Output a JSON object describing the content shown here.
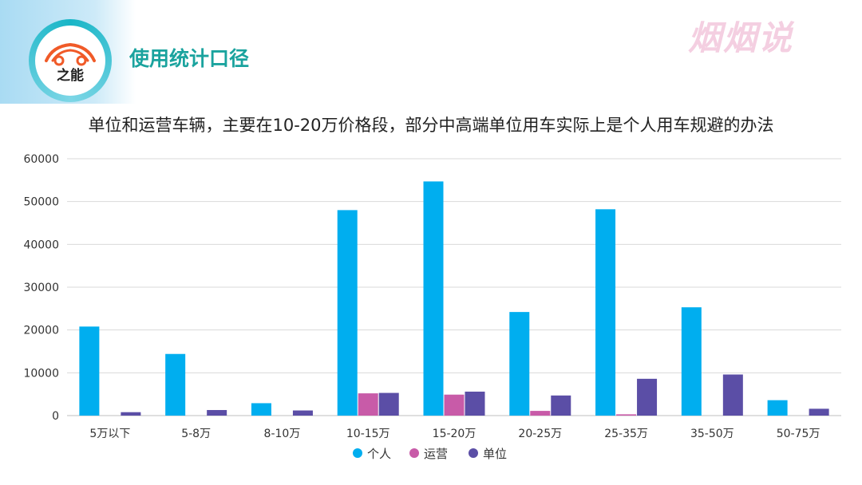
{
  "header": {
    "logo_text": "之能",
    "section_title": "使用统计口径",
    "watermark": "烟烟说"
  },
  "colors": {
    "personal": "#00aeef",
    "operating": "#c85ba8",
    "unit": "#5b4ea6",
    "grid": "#d9d9d9",
    "text": "#333333"
  },
  "chart_data": {
    "type": "bar",
    "title": "单位和运营车辆，主要在10-20万价格段，部分中高端单位用车实际上是个人用车规避的办法",
    "xlabel": "",
    "ylabel": "",
    "ylim": [
      0,
      60000
    ],
    "yticks": [
      0,
      10000,
      20000,
      30000,
      40000,
      50000,
      60000
    ],
    "grid": true,
    "legend_position": "bottom-center",
    "categories": [
      "5万以下",
      "5-8万",
      "8-10万",
      "10-15万",
      "15-20万",
      "20-25万",
      "25-35万",
      "35-50万",
      "50-75万"
    ],
    "series": [
      {
        "name": "个人",
        "color_key": "personal",
        "values": [
          20800,
          14400,
          2900,
          48000,
          54700,
          24200,
          48200,
          25300,
          3600
        ]
      },
      {
        "name": "运营",
        "color_key": "operating",
        "values": [
          0,
          0,
          0,
          5200,
          4900,
          1100,
          300,
          0,
          0
        ]
      },
      {
        "name": "单位",
        "color_key": "unit",
        "values": [
          800,
          1300,
          1200,
          5300,
          5600,
          4700,
          8600,
          9600,
          1600
        ]
      }
    ]
  }
}
